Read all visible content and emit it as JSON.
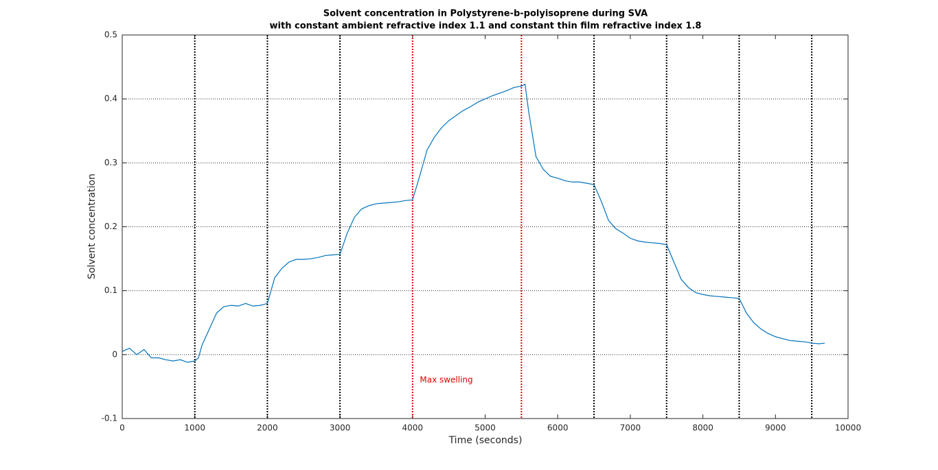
{
  "chart_data": {
    "type": "line",
    "title": "Solvent concentration in Polystyrene-b-polyisoprene during SVA",
    "subtitle": "with constant ambient refractive index 1.1 and constant thin film refractive index 1.8",
    "x_label": "Time (seconds)",
    "y_label": "Solvent concentration",
    "xlim": [
      0,
      10000
    ],
    "xticks": [
      0,
      1000,
      2000,
      3000,
      4000,
      5000,
      6000,
      7000,
      8000,
      9000,
      10000
    ],
    "ylim": [
      -0.1,
      0.5
    ],
    "yticks": [
      -0.1,
      0,
      0.1,
      0.2,
      0.3,
      0.4,
      0.5
    ],
    "grid": "y",
    "x": [
      0,
      100,
      200,
      300,
      400,
      500,
      600,
      700,
      800,
      900,
      1000,
      1050,
      1100,
      1200,
      1300,
      1400,
      1500,
      1600,
      1700,
      1800,
      1900,
      2000,
      2100,
      2200,
      2300,
      2400,
      2500,
      2600,
      2700,
      2800,
      2900,
      3000,
      3100,
      3200,
      3300,
      3400,
      3500,
      3600,
      3700,
      3800,
      3900,
      4000,
      4100,
      4200,
      4300,
      4400,
      4500,
      4600,
      4700,
      4800,
      4900,
      5000,
      5100,
      5200,
      5300,
      5400,
      5500,
      5550,
      5600,
      5700,
      5800,
      5900,
      6000,
      6100,
      6200,
      6300,
      6400,
      6500,
      6600,
      6700,
      6800,
      6900,
      7000,
      7100,
      7200,
      7300,
      7400,
      7500,
      7600,
      7700,
      7800,
      7900,
      8000,
      8100,
      8200,
      8300,
      8400,
      8500,
      8600,
      8700,
      8800,
      8900,
      9000,
      9100,
      9200,
      9300,
      9400,
      9500,
      9600,
      9680
    ],
    "series": [
      {
        "name": "Solvent concentration",
        "color": "#0072bd",
        "values": [
          0.005,
          0.01,
          0.0,
          0.008,
          -0.005,
          -0.005,
          -0.008,
          -0.01,
          -0.008,
          -0.012,
          -0.01,
          -0.005,
          0.015,
          0.04,
          0.065,
          0.075,
          0.077,
          0.076,
          0.08,
          0.076,
          0.077,
          0.08,
          0.12,
          0.135,
          0.145,
          0.149,
          0.149,
          0.15,
          0.152,
          0.155,
          0.156,
          0.157,
          0.19,
          0.215,
          0.228,
          0.233,
          0.236,
          0.237,
          0.238,
          0.239,
          0.241,
          0.242,
          0.28,
          0.32,
          0.34,
          0.355,
          0.366,
          0.374,
          0.382,
          0.388,
          0.395,
          0.4,
          0.405,
          0.409,
          0.413,
          0.418,
          0.42,
          0.423,
          0.38,
          0.31,
          0.29,
          0.279,
          0.276,
          0.272,
          0.27,
          0.27,
          0.268,
          0.266,
          0.24,
          0.21,
          0.197,
          0.19,
          0.182,
          0.178,
          0.176,
          0.175,
          0.174,
          0.172,
          0.145,
          0.118,
          0.105,
          0.097,
          0.094,
          0.092,
          0.091,
          0.09,
          0.089,
          0.088,
          0.065,
          0.05,
          0.04,
          0.033,
          0.028,
          0.025,
          0.022,
          0.021,
          0.02,
          0.018,
          0.017,
          0.018
        ]
      }
    ],
    "vlines": [
      {
        "x": 1000,
        "color": "#000000"
      },
      {
        "x": 2000,
        "color": "#000000"
      },
      {
        "x": 3000,
        "color": "#000000"
      },
      {
        "x": 4000,
        "color": "#e00000"
      },
      {
        "x": 5500,
        "color": "#e00000"
      },
      {
        "x": 6500,
        "color": "#000000"
      },
      {
        "x": 7500,
        "color": "#000000"
      },
      {
        "x": 8500,
        "color": "#000000"
      },
      {
        "x": 9500,
        "color": "#000000"
      }
    ],
    "annotations": [
      {
        "text": "Max swelling",
        "x": 4100,
        "y": -0.04,
        "color": "#e00000"
      }
    ]
  }
}
